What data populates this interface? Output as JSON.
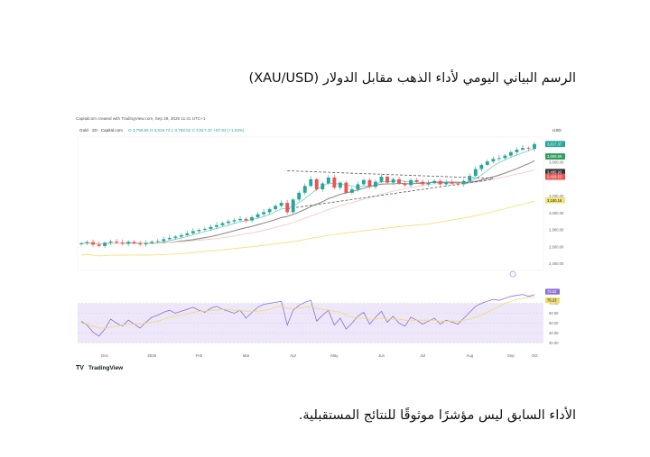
{
  "page": {
    "title": "الرسم البياني اليومي لأداء الذهب مقابل الدولار (XAU/USD)",
    "footer_note": "الأداء السابق ليس مؤشرًا موثوقًا للنتائج المستقبلية."
  },
  "chart_header": {
    "credit": "Capitalcom created with TradingView.com, Sep 29, 2025 11:41 UTC+1",
    "symbol_line": "Gold · 1D · Capital.com",
    "ohlc": "O 3,759.55  H 3,819.74  L 3,759.52  C 3,817.37  +57.93 (+1.54%)",
    "currency": "USD",
    "brand": "TradingView"
  },
  "colors": {
    "up": "#26a69a",
    "down": "#ef5350",
    "ma_fast": "#7fd3c4",
    "ma_mid": "#8c8c8c",
    "ma_slow": "#f3c9c9",
    "ma_long": "#f5e27a",
    "rsi": "#8e6fd1",
    "rsi_ma": "#f0dc6a",
    "rsi_band": "#ede7f9",
    "triangle": "#555555"
  },
  "chart_data": {
    "type": "candlestick",
    "x_labels": [
      "Dec",
      "2025",
      "Feb",
      "Mar",
      "Apr",
      "May",
      "Jun",
      "Jul",
      "Aug",
      "Sep",
      "Oct"
    ],
    "y_ticks": [
      "3,800.00",
      "3,600.00",
      "3,200.00",
      "3,000.00",
      "2,800.00",
      "2,600.00",
      "2,400.00"
    ],
    "ylim": [
      2320,
      3900
    ],
    "price_badges": [
      {
        "value": "3,817.37",
        "color": "#26a69a"
      },
      {
        "value": "3,669.69",
        "color": "#2e9e5b"
      },
      {
        "value": "3,485.93",
        "color": "#333333"
      },
      {
        "value": "3,429.53",
        "color": "#ef5350"
      },
      {
        "value": "3,150.16",
        "color": "#f5e27a"
      }
    ],
    "close_series": [
      2640,
      2655,
      2625,
      2610,
      2648,
      2662,
      2650,
      2636,
      2658,
      2642,
      2628,
      2644,
      2660,
      2668,
      2690,
      2705,
      2720,
      2738,
      2760,
      2785,
      2800,
      2812,
      2835,
      2855,
      2880,
      2900,
      2915,
      2930,
      2912,
      2950,
      2985,
      3010,
      3045,
      3085,
      3120,
      3010,
      3160,
      3240,
      3320,
      3400,
      3280,
      3350,
      3420,
      3300,
      3360,
      3240,
      3280,
      3340,
      3390,
      3310,
      3370,
      3430,
      3360,
      3400,
      3350,
      3330,
      3390,
      3370,
      3340,
      3355,
      3380,
      3340,
      3365,
      3350,
      3340,
      3380,
      3440,
      3520,
      3570,
      3610,
      3640,
      3650,
      3680,
      3720,
      3750,
      3770,
      3760,
      3817
    ],
    "rsi": {
      "levels": [
        "70.00",
        "60.00",
        "50.00",
        "40.00",
        "30.00"
      ],
      "badges": [
        "78.62",
        "76.23"
      ],
      "ylim": [
        25,
        85
      ],
      "values": [
        52,
        48,
        41,
        37,
        44,
        54,
        50,
        47,
        53,
        49,
        45,
        51,
        56,
        58,
        61,
        63,
        60,
        62,
        64,
        66,
        63,
        61,
        65,
        67,
        64,
        62,
        60,
        63,
        55,
        61,
        66,
        69,
        70,
        71,
        72,
        48,
        63,
        68,
        71,
        73,
        52,
        58,
        63,
        48,
        55,
        44,
        50,
        57,
        61,
        49,
        56,
        62,
        51,
        57,
        50,
        47,
        56,
        53,
        49,
        52,
        55,
        49,
        53,
        51,
        49,
        55,
        61,
        67,
        70,
        72,
        74,
        73,
        75,
        77,
        78,
        79,
        77,
        78.6
      ],
      "ma_values": [
        50,
        49,
        47,
        45,
        45,
        46,
        47,
        48,
        49,
        49,
        49,
        50,
        51,
        52,
        54,
        56,
        57,
        58,
        59,
        61,
        62,
        62,
        63,
        63,
        64,
        64,
        63,
        63,
        62,
        62,
        62,
        63,
        64,
        66,
        67,
        65,
        65,
        65,
        66,
        67,
        65,
        64,
        63,
        62,
        61,
        58,
        56,
        55,
        55,
        54,
        54,
        55,
        54,
        54,
        54,
        53,
        53,
        53,
        53,
        53,
        53,
        52,
        52,
        52,
        52,
        53,
        54,
        56,
        58,
        61,
        64,
        67,
        70,
        72,
        74,
        75,
        76,
        76.2
      ]
    }
  }
}
